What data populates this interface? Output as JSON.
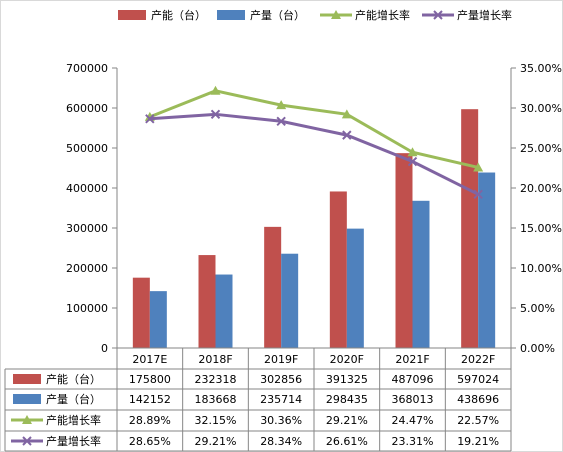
{
  "chart_data": {
    "type": "bar",
    "categories": [
      "2017E",
      "2018F",
      "2019F",
      "2020F",
      "2021F",
      "2022F"
    ],
    "series": [
      {
        "name": "产能（台）",
        "kind": "bar",
        "axis": "left",
        "color": "#C0504D",
        "values": [
          175800,
          232318,
          302856,
          391325,
          487096,
          597024
        ]
      },
      {
        "name": "产量（台）",
        "kind": "bar",
        "axis": "left",
        "color": "#4F81BD",
        "values": [
          142152,
          183668,
          235714,
          298435,
          368013,
          438696
        ]
      },
      {
        "name": "产能增长率",
        "kind": "line",
        "marker": "triangle",
        "axis": "right",
        "color": "#9BBB59",
        "values": [
          28.89,
          32.15,
          30.36,
          29.21,
          24.47,
          22.57
        ],
        "labels": [
          "28.89%",
          "32.15%",
          "30.36%",
          "29.21%",
          "24.47%",
          "22.57%"
        ]
      },
      {
        "name": "产量增长率",
        "kind": "line",
        "marker": "x",
        "axis": "right",
        "color": "#8064A2",
        "values": [
          28.65,
          29.21,
          28.34,
          26.61,
          23.31,
          19.21
        ],
        "labels": [
          "28.65%",
          "29.21%",
          "28.34%",
          "26.61%",
          "23.31%",
          "19.21%"
        ]
      }
    ],
    "left_axis": {
      "min": 0,
      "max": 700000,
      "ticks": [
        "0",
        "100000",
        "200000",
        "300000",
        "400000",
        "500000",
        "600000",
        "700000"
      ]
    },
    "right_axis": {
      "min": 0,
      "max": 35,
      "ticks": [
        "0.00%",
        "5.00%",
        "10.00%",
        "15.00%",
        "20.00%",
        "25.00%",
        "30.00%",
        "35.00%"
      ]
    },
    "legend_position": "top",
    "grid": false,
    "data_table": true
  }
}
